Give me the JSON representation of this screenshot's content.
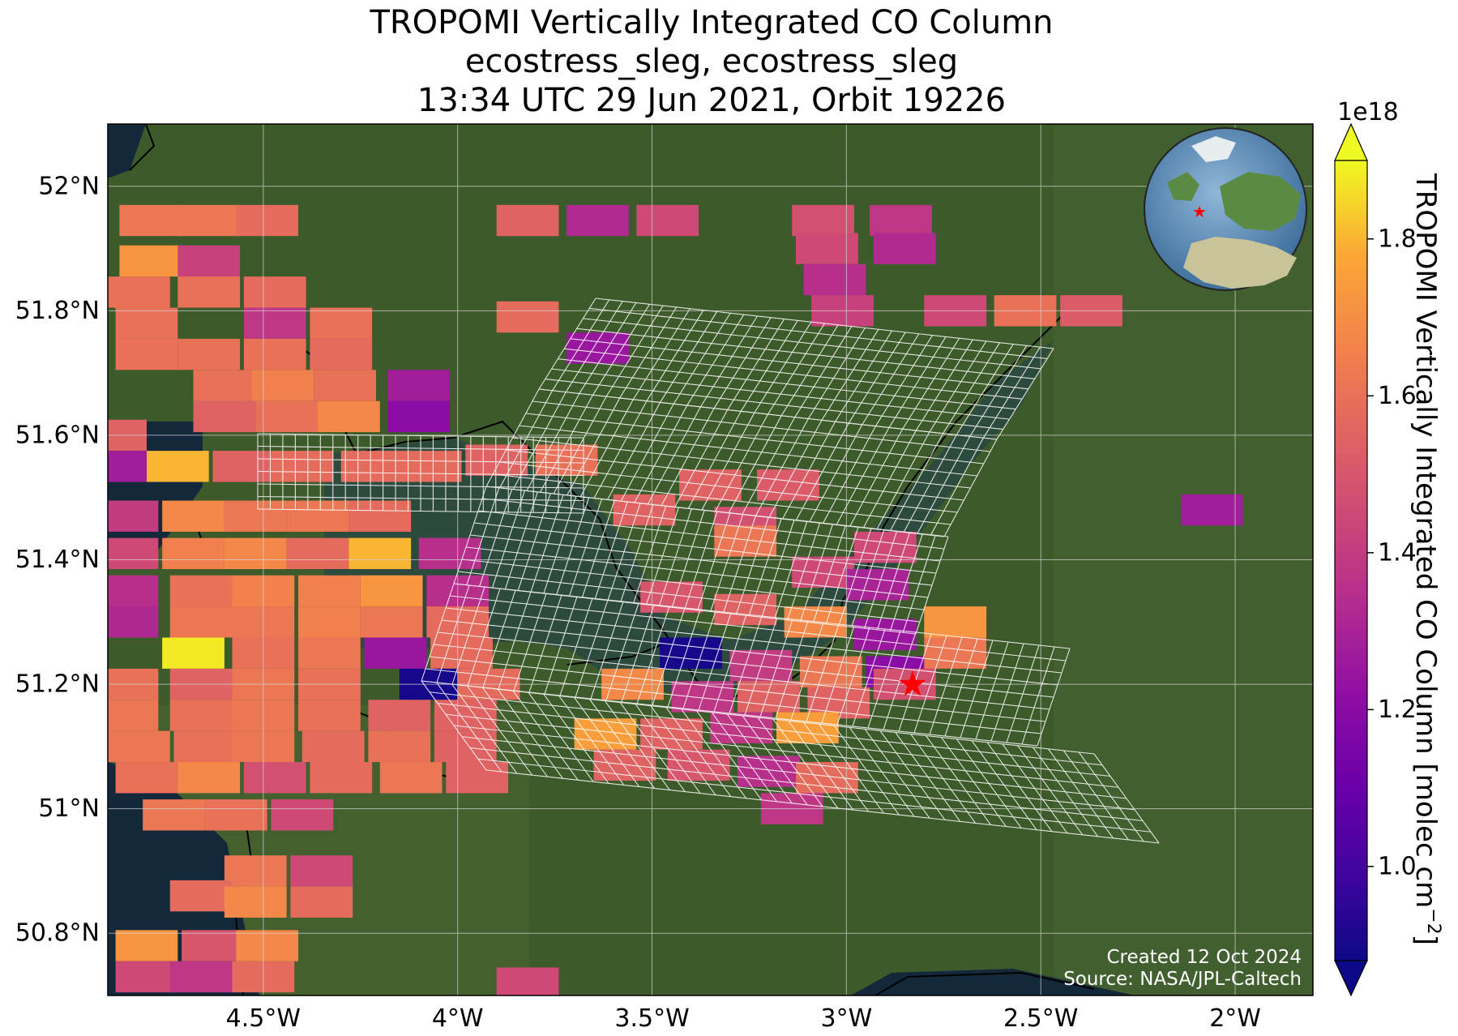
{
  "title": {
    "line1": "TROPOMI Vertically Integrated CO Column",
    "line2": "ecostress_sleg, ecostress_sleg",
    "line3": "13:34 UTC 29 Jun 2021, Orbit 19226"
  },
  "map": {
    "extent": {
      "lon_min": -4.9,
      "lon_max": -1.8,
      "lat_min": 50.7,
      "lat_max": 52.1
    },
    "lon_ticks": [
      {
        "value": -4.5,
        "label": "4.5°W"
      },
      {
        "value": -4.0,
        "label": "4°W"
      },
      {
        "value": -3.5,
        "label": "3.5°W"
      },
      {
        "value": -3.0,
        "label": "3°W"
      },
      {
        "value": -2.5,
        "label": "2.5°W"
      },
      {
        "value": -2.0,
        "label": "2°W"
      }
    ],
    "lat_ticks": [
      {
        "value": 52.0,
        "label": "52°N"
      },
      {
        "value": 51.8,
        "label": "51.8°N"
      },
      {
        "value": 51.6,
        "label": "51.6°N"
      },
      {
        "value": 51.4,
        "label": "51.4°N"
      },
      {
        "value": 51.2,
        "label": "51.2°N"
      },
      {
        "value": 51.0,
        "label": "51°N"
      },
      {
        "value": 50.8,
        "label": "50.8°N"
      }
    ],
    "target_marker": {
      "lon": -2.83,
      "lat": 51.2,
      "color": "#ff0000",
      "icon": "star"
    },
    "credit_line1": "Created 12 Oct 2024",
    "credit_line2": "Source: NASA/JPL-Caltech",
    "background": {
      "land": "#3d5a2a",
      "sea": "#13283a",
      "estuary": "#2c4a3d"
    }
  },
  "colorbar": {
    "label": "TROPOMI Vertically Integrated CO Column [molec cm",
    "label_exponent": "−2",
    "label_close": "]",
    "scale_note": "1e18",
    "vmin": 0.88,
    "vmax": 1.9,
    "colormap": "plasma",
    "ticks": [
      {
        "value": 1.0,
        "label": "1.0"
      },
      {
        "value": 1.2,
        "label": "1.2"
      },
      {
        "value": 1.4,
        "label": "1.4"
      },
      {
        "value": 1.6,
        "label": "1.6"
      },
      {
        "value": 1.8,
        "label": "1.8"
      }
    ]
  },
  "chart_data": {
    "type": "heatmap",
    "title": "TROPOMI Vertically Integrated CO Column",
    "subtitle": "ecostress_sleg, ecostress_sleg / 13:34 UTC 29 Jun 2021, Orbit 19226",
    "xlabel": "",
    "ylabel": "",
    "value_units": "1e18 molec cm-2",
    "cells": [
      {
        "lon": -4.79,
        "lat": 51.945,
        "v": 1.62
      },
      {
        "lon": -4.64,
        "lat": 51.945,
        "v": 1.62
      },
      {
        "lon": -4.49,
        "lat": 51.945,
        "v": 1.58
      },
      {
        "lon": -3.82,
        "lat": 51.945,
        "v": 1.55
      },
      {
        "lon": -3.64,
        "lat": 51.945,
        "v": 1.33
      },
      {
        "lon": -3.46,
        "lat": 51.945,
        "v": 1.45
      },
      {
        "lon": -3.06,
        "lat": 51.945,
        "v": 1.48
      },
      {
        "lon": -2.86,
        "lat": 51.945,
        "v": 1.38
      },
      {
        "lon": -3.05,
        "lat": 51.9,
        "v": 1.45
      },
      {
        "lon": -2.85,
        "lat": 51.9,
        "v": 1.33
      },
      {
        "lon": -3.03,
        "lat": 51.85,
        "v": 1.35
      },
      {
        "lon": -3.01,
        "lat": 51.8,
        "v": 1.42
      },
      {
        "lon": -4.79,
        "lat": 51.88,
        "v": 1.72
      },
      {
        "lon": -4.64,
        "lat": 51.88,
        "v": 1.42
      },
      {
        "lon": -4.82,
        "lat": 51.83,
        "v": 1.6
      },
      {
        "lon": -4.64,
        "lat": 51.83,
        "v": 1.6
      },
      {
        "lon": -4.47,
        "lat": 51.83,
        "v": 1.58
      },
      {
        "lon": -4.8,
        "lat": 51.78,
        "v": 1.6
      },
      {
        "lon": -4.47,
        "lat": 51.78,
        "v": 1.38
      },
      {
        "lon": -4.3,
        "lat": 51.78,
        "v": 1.6
      },
      {
        "lon": -4.8,
        "lat": 51.73,
        "v": 1.6
      },
      {
        "lon": -4.64,
        "lat": 51.73,
        "v": 1.6
      },
      {
        "lon": -4.47,
        "lat": 51.73,
        "v": 1.6
      },
      {
        "lon": -4.3,
        "lat": 51.73,
        "v": 1.58
      },
      {
        "lon": -4.6,
        "lat": 51.68,
        "v": 1.6
      },
      {
        "lon": -4.45,
        "lat": 51.68,
        "v": 1.65
      },
      {
        "lon": -4.29,
        "lat": 51.68,
        "v": 1.6
      },
      {
        "lon": -4.1,
        "lat": 51.68,
        "v": 1.28
      },
      {
        "lon": -4.6,
        "lat": 51.63,
        "v": 1.55
      },
      {
        "lon": -4.44,
        "lat": 51.63,
        "v": 1.6
      },
      {
        "lon": -4.28,
        "lat": 51.63,
        "v": 1.68
      },
      {
        "lon": -4.1,
        "lat": 51.63,
        "v": 1.2
      },
      {
        "lon": -4.88,
        "lat": 51.6,
        "v": 1.55
      },
      {
        "lon": -4.72,
        "lat": 51.55,
        "v": 1.8
      },
      {
        "lon": -4.88,
        "lat": 51.55,
        "v": 1.28
      },
      {
        "lon": -4.55,
        "lat": 51.55,
        "v": 1.55
      },
      {
        "lon": -4.4,
        "lat": 51.55,
        "v": 1.58
      },
      {
        "lon": -4.22,
        "lat": 51.55,
        "v": 1.58
      },
      {
        "lon": -4.07,
        "lat": 51.55,
        "v": 1.58
      },
      {
        "lon": -3.9,
        "lat": 51.56,
        "v": 1.55
      },
      {
        "lon": -3.72,
        "lat": 51.56,
        "v": 1.6
      },
      {
        "lon": -3.82,
        "lat": 51.79,
        "v": 1.58
      },
      {
        "lon": -3.64,
        "lat": 51.74,
        "v": 1.25
      },
      {
        "lon": -4.85,
        "lat": 51.47,
        "v": 1.4
      },
      {
        "lon": -4.68,
        "lat": 51.47,
        "v": 1.68
      },
      {
        "lon": -4.52,
        "lat": 51.47,
        "v": 1.62
      },
      {
        "lon": -4.36,
        "lat": 51.47,
        "v": 1.62
      },
      {
        "lon": -4.2,
        "lat": 51.47,
        "v": 1.58
      },
      {
        "lon": -4.85,
        "lat": 51.41,
        "v": 1.45
      },
      {
        "lon": -4.68,
        "lat": 51.41,
        "v": 1.65
      },
      {
        "lon": -4.52,
        "lat": 51.41,
        "v": 1.68
      },
      {
        "lon": -4.36,
        "lat": 51.41,
        "v": 1.58
      },
      {
        "lon": -4.2,
        "lat": 51.41,
        "v": 1.8
      },
      {
        "lon": -4.02,
        "lat": 51.41,
        "v": 1.35
      },
      {
        "lon": -4.85,
        "lat": 51.35,
        "v": 1.35
      },
      {
        "lon": -4.66,
        "lat": 51.35,
        "v": 1.6
      },
      {
        "lon": -4.5,
        "lat": 51.35,
        "v": 1.66
      },
      {
        "lon": -4.33,
        "lat": 51.35,
        "v": 1.65
      },
      {
        "lon": -4.17,
        "lat": 51.35,
        "v": 1.72
      },
      {
        "lon": -4.0,
        "lat": 51.35,
        "v": 1.35
      },
      {
        "lon": -4.85,
        "lat": 51.3,
        "v": 1.32
      },
      {
        "lon": -4.66,
        "lat": 51.3,
        "v": 1.62
      },
      {
        "lon": -4.5,
        "lat": 51.3,
        "v": 1.62
      },
      {
        "lon": -4.33,
        "lat": 51.3,
        "v": 1.65
      },
      {
        "lon": -4.17,
        "lat": 51.3,
        "v": 1.62
      },
      {
        "lon": -4.0,
        "lat": 51.3,
        "v": 1.58
      },
      {
        "lon": -4.68,
        "lat": 51.25,
        "v": 1.88
      },
      {
        "lon": -4.5,
        "lat": 51.25,
        "v": 1.6
      },
      {
        "lon": -4.33,
        "lat": 51.25,
        "v": 1.62
      },
      {
        "lon": -4.16,
        "lat": 51.25,
        "v": 1.25
      },
      {
        "lon": -3.99,
        "lat": 51.25,
        "v": 1.58
      },
      {
        "lon": -4.85,
        "lat": 51.2,
        "v": 1.6
      },
      {
        "lon": -4.66,
        "lat": 51.2,
        "v": 1.55
      },
      {
        "lon": -4.5,
        "lat": 51.2,
        "v": 1.62
      },
      {
        "lon": -4.33,
        "lat": 51.2,
        "v": 1.6
      },
      {
        "lon": -4.07,
        "lat": 51.2,
        "v": 0.9
      },
      {
        "lon": -3.92,
        "lat": 51.2,
        "v": 1.58
      },
      {
        "lon": -4.85,
        "lat": 51.15,
        "v": 1.62
      },
      {
        "lon": -4.66,
        "lat": 51.15,
        "v": 1.6
      },
      {
        "lon": -4.5,
        "lat": 51.15,
        "v": 1.62
      },
      {
        "lon": -4.33,
        "lat": 51.15,
        "v": 1.6
      },
      {
        "lon": -4.15,
        "lat": 51.15,
        "v": 1.55
      },
      {
        "lon": -3.98,
        "lat": 51.15,
        "v": 1.55
      },
      {
        "lon": -4.82,
        "lat": 51.1,
        "v": 1.62
      },
      {
        "lon": -4.65,
        "lat": 51.1,
        "v": 1.6
      },
      {
        "lon": -4.5,
        "lat": 51.1,
        "v": 1.62
      },
      {
        "lon": -4.32,
        "lat": 51.1,
        "v": 1.58
      },
      {
        "lon": -4.15,
        "lat": 51.1,
        "v": 1.6
      },
      {
        "lon": -3.98,
        "lat": 51.1,
        "v": 1.55
      },
      {
        "lon": -4.8,
        "lat": 51.05,
        "v": 1.6
      },
      {
        "lon": -4.64,
        "lat": 51.05,
        "v": 1.68
      },
      {
        "lon": -4.47,
        "lat": 51.05,
        "v": 1.48
      },
      {
        "lon": -4.3,
        "lat": 51.05,
        "v": 1.58
      },
      {
        "lon": -4.12,
        "lat": 51.05,
        "v": 1.62
      },
      {
        "lon": -3.95,
        "lat": 51.05,
        "v": 1.55
      },
      {
        "lon": -4.73,
        "lat": 50.99,
        "v": 1.62
      },
      {
        "lon": -4.57,
        "lat": 50.99,
        "v": 1.6
      },
      {
        "lon": -4.4,
        "lat": 50.99,
        "v": 1.45
      },
      {
        "lon": -4.52,
        "lat": 50.9,
        "v": 1.62
      },
      {
        "lon": -4.35,
        "lat": 50.9,
        "v": 1.45
      },
      {
        "lon": -4.66,
        "lat": 50.86,
        "v": 1.58
      },
      {
        "lon": -4.52,
        "lat": 50.85,
        "v": 1.68
      },
      {
        "lon": -4.35,
        "lat": 50.85,
        "v": 1.58
      },
      {
        "lon": -4.8,
        "lat": 50.78,
        "v": 1.72
      },
      {
        "lon": -4.63,
        "lat": 50.78,
        "v": 1.5
      },
      {
        "lon": -4.49,
        "lat": 50.78,
        "v": 1.68
      },
      {
        "lon": -4.8,
        "lat": 50.73,
        "v": 1.45
      },
      {
        "lon": -4.66,
        "lat": 50.73,
        "v": 1.38
      },
      {
        "lon": -4.5,
        "lat": 50.73,
        "v": 1.58
      },
      {
        "lon": -3.82,
        "lat": 50.72,
        "v": 1.45
      },
      {
        "lon": -3.35,
        "lat": 51.52,
        "v": 1.55
      },
      {
        "lon": -3.15,
        "lat": 51.52,
        "v": 1.52
      },
      {
        "lon": -3.52,
        "lat": 51.48,
        "v": 1.55
      },
      {
        "lon": -3.26,
        "lat": 51.46,
        "v": 1.48
      },
      {
        "lon": -3.26,
        "lat": 51.43,
        "v": 1.62
      },
      {
        "lon": -2.9,
        "lat": 51.42,
        "v": 1.45
      },
      {
        "lon": -3.06,
        "lat": 51.38,
        "v": 1.45
      },
      {
        "lon": -2.92,
        "lat": 51.36,
        "v": 1.3
      },
      {
        "lon": -3.45,
        "lat": 51.34,
        "v": 1.5
      },
      {
        "lon": -3.26,
        "lat": 51.32,
        "v": 1.55
      },
      {
        "lon": -3.08,
        "lat": 51.3,
        "v": 1.68
      },
      {
        "lon": -2.9,
        "lat": 51.28,
        "v": 1.25
      },
      {
        "lon": -2.72,
        "lat": 51.3,
        "v": 1.72
      },
      {
        "lon": -3.4,
        "lat": 51.25,
        "v": 0.9
      },
      {
        "lon": -3.22,
        "lat": 51.23,
        "v": 1.4
      },
      {
        "lon": -3.04,
        "lat": 51.22,
        "v": 1.62
      },
      {
        "lon": -2.87,
        "lat": 51.22,
        "v": 1.2
      },
      {
        "lon": -2.72,
        "lat": 51.25,
        "v": 1.62
      },
      {
        "lon": -3.55,
        "lat": 51.2,
        "v": 1.68
      },
      {
        "lon": -3.37,
        "lat": 51.18,
        "v": 1.38
      },
      {
        "lon": -3.2,
        "lat": 51.18,
        "v": 1.55
      },
      {
        "lon": -3.02,
        "lat": 51.17,
        "v": 1.55
      },
      {
        "lon": -2.85,
        "lat": 51.2,
        "v": 1.48
      },
      {
        "lon": -3.62,
        "lat": 51.12,
        "v": 1.75
      },
      {
        "lon": -3.45,
        "lat": 51.12,
        "v": 1.55
      },
      {
        "lon": -3.27,
        "lat": 51.13,
        "v": 1.38
      },
      {
        "lon": -3.1,
        "lat": 51.13,
        "v": 1.75
      },
      {
        "lon": -3.57,
        "lat": 51.07,
        "v": 1.55
      },
      {
        "lon": -3.38,
        "lat": 51.07,
        "v": 1.5
      },
      {
        "lon": -3.2,
        "lat": 51.06,
        "v": 1.35
      },
      {
        "lon": -3.05,
        "lat": 51.05,
        "v": 1.58
      },
      {
        "lon": -3.14,
        "lat": 51.0,
        "v": 1.38
      },
      {
        "lon": -2.72,
        "lat": 51.8,
        "v": 1.45
      },
      {
        "lon": -2.54,
        "lat": 51.8,
        "v": 1.6
      },
      {
        "lon": -2.37,
        "lat": 51.8,
        "v": 1.52
      },
      {
        "lon": -2.06,
        "lat": 51.48,
        "v": 1.28
      }
    ]
  }
}
